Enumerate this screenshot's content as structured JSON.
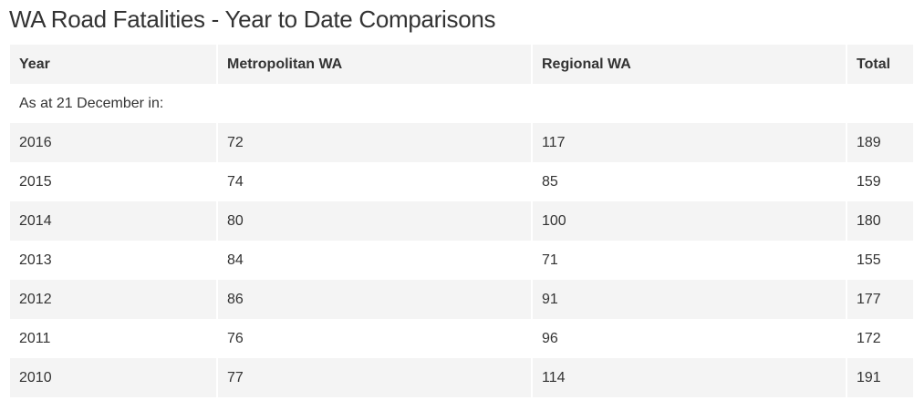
{
  "page": {
    "title": "WA Road Fatalities - Year to Date Comparisons"
  },
  "table": {
    "headers": {
      "year": "Year",
      "metropolitan": "Metropolitan WA",
      "regional": "Regional WA",
      "total": "Total"
    },
    "note": "As at 21 December in:",
    "rows": [
      {
        "year": "2016",
        "metropolitan": "72",
        "regional": "117",
        "total": "189"
      },
      {
        "year": "2015",
        "metropolitan": "74",
        "regional": "85",
        "total": "159"
      },
      {
        "year": "2014",
        "metropolitan": "80",
        "regional": "100",
        "total": "180"
      },
      {
        "year": "2013",
        "metropolitan": "84",
        "regional": "71",
        "total": "155"
      },
      {
        "year": "2012",
        "metropolitan": "86",
        "regional": "91",
        "total": "177"
      },
      {
        "year": "2011",
        "metropolitan": "76",
        "regional": "96",
        "total": "172"
      },
      {
        "year": "2010",
        "metropolitan": "77",
        "regional": "114",
        "total": "191"
      }
    ]
  },
  "colors": {
    "shaded_row": "#f4f4f4",
    "text": "#333333"
  }
}
